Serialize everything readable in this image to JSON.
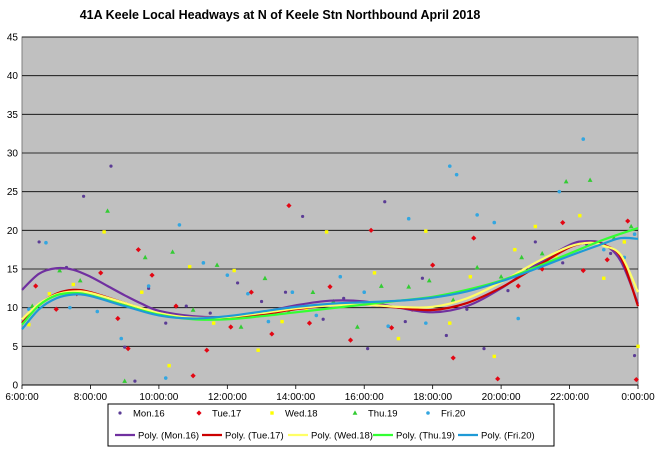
{
  "chart_data": {
    "type": "scatter",
    "title": "41A Keele Local Headways at N of Keele Stn Northbound April 2018",
    "xlabel": "",
    "ylabel": "",
    "xlim": [
      6,
      24
    ],
    "ylim": [
      0,
      45
    ],
    "x_ticks": [
      "6:00:00",
      "8:00:00",
      "10:00:00",
      "12:00:00",
      "14:00:00",
      "16:00:00",
      "18:00:00",
      "20:00:00",
      "22:00:00",
      "0:00:00"
    ],
    "y_ticks": [
      "0",
      "5",
      "10",
      "15",
      "20",
      "25",
      "30",
      "35",
      "40",
      "45"
    ],
    "grid": true,
    "legend_position": "bottom",
    "series": [
      {
        "name": "Mon.16",
        "color": "#5b3c95",
        "marker": "diamond-dot",
        "points": [
          [
            6.5,
            18.5
          ],
          [
            7.3,
            15.2
          ],
          [
            7.8,
            24.4
          ],
          [
            8.6,
            28.3
          ],
          [
            9.0,
            4.9
          ],
          [
            9.3,
            0.5
          ],
          [
            9.7,
            12.5
          ],
          [
            10.2,
            8.0
          ],
          [
            10.8,
            10.2
          ],
          [
            11.5,
            9.3
          ],
          [
            12.3,
            13.2
          ],
          [
            13.0,
            10.8
          ],
          [
            13.7,
            12.0
          ],
          [
            14.2,
            21.8
          ],
          [
            14.8,
            8.5
          ],
          [
            15.4,
            11.2
          ],
          [
            16.1,
            4.7
          ],
          [
            16.6,
            23.7
          ],
          [
            17.2,
            8.2
          ],
          [
            17.7,
            13.8
          ],
          [
            18.4,
            6.4
          ],
          [
            19.0,
            9.8
          ],
          [
            19.5,
            4.7
          ],
          [
            20.2,
            12.2
          ],
          [
            21.0,
            18.5
          ],
          [
            21.8,
            15.8
          ],
          [
            22.5,
            18.2
          ],
          [
            23.2,
            17.0
          ],
          [
            23.9,
            3.8
          ]
        ]
      },
      {
        "name": "Tue.17",
        "color": "#e30613",
        "marker": "diamond",
        "points": [
          [
            6.4,
            12.8
          ],
          [
            7.0,
            9.8
          ],
          [
            7.6,
            11.8
          ],
          [
            8.3,
            14.5
          ],
          [
            8.8,
            8.6
          ],
          [
            9.1,
            4.7
          ],
          [
            9.4,
            17.5
          ],
          [
            9.8,
            14.2
          ],
          [
            10.5,
            10.2
          ],
          [
            11.0,
            1.2
          ],
          [
            11.4,
            4.5
          ],
          [
            12.1,
            7.5
          ],
          [
            12.7,
            12.0
          ],
          [
            13.3,
            6.6
          ],
          [
            13.8,
            23.2
          ],
          [
            14.4,
            8.0
          ],
          [
            15.0,
            12.7
          ],
          [
            15.6,
            5.8
          ],
          [
            16.2,
            20.0
          ],
          [
            16.8,
            7.4
          ],
          [
            17.4,
            9.8
          ],
          [
            18.0,
            15.5
          ],
          [
            18.6,
            3.5
          ],
          [
            19.2,
            19.0
          ],
          [
            19.9,
            0.8
          ],
          [
            20.5,
            12.8
          ],
          [
            21.2,
            15.0
          ],
          [
            21.8,
            21.0
          ],
          [
            22.4,
            14.8
          ],
          [
            23.1,
            16.2
          ],
          [
            23.7,
            21.2
          ],
          [
            23.95,
            0.7
          ]
        ]
      },
      {
        "name": "Wed.18",
        "color": "#ffff00",
        "marker": "square",
        "points": [
          [
            6.2,
            7.8
          ],
          [
            6.8,
            11.8
          ],
          [
            7.5,
            13.0
          ],
          [
            8.4,
            19.8
          ],
          [
            9.0,
            10.5
          ],
          [
            9.5,
            12.0
          ],
          [
            10.3,
            2.5
          ],
          [
            10.9,
            15.3
          ],
          [
            11.6,
            8.0
          ],
          [
            12.2,
            14.8
          ],
          [
            12.9,
            4.5
          ],
          [
            13.6,
            8.2
          ],
          [
            14.3,
            9.8
          ],
          [
            14.9,
            19.8
          ],
          [
            15.7,
            10.5
          ],
          [
            16.3,
            14.5
          ],
          [
            17.0,
            6.0
          ],
          [
            17.8,
            19.9
          ],
          [
            18.5,
            8.0
          ],
          [
            19.1,
            14.0
          ],
          [
            19.8,
            3.7
          ],
          [
            20.4,
            17.5
          ],
          [
            21.0,
            20.5
          ],
          [
            21.6,
            16.7
          ],
          [
            22.3,
            21.9
          ],
          [
            23.0,
            13.8
          ],
          [
            23.6,
            18.5
          ],
          [
            24.0,
            5.0
          ]
        ]
      },
      {
        "name": "Thu.19",
        "color": "#33cc33",
        "marker": "triangle",
        "points": [
          [
            6.3,
            10.2
          ],
          [
            7.1,
            14.8
          ],
          [
            7.7,
            13.5
          ],
          [
            8.5,
            22.5
          ],
          [
            9.0,
            0.5
          ],
          [
            9.6,
            16.5
          ],
          [
            10.4,
            17.2
          ],
          [
            11.0,
            9.7
          ],
          [
            11.7,
            15.5
          ],
          [
            12.4,
            7.5
          ],
          [
            13.1,
            13.8
          ],
          [
            13.8,
            9.5
          ],
          [
            14.5,
            12.0
          ],
          [
            15.1,
            10.8
          ],
          [
            15.8,
            7.5
          ],
          [
            16.5,
            12.8
          ],
          [
            17.3,
            12.7
          ],
          [
            17.9,
            13.5
          ],
          [
            18.6,
            11.0
          ],
          [
            19.3,
            15.2
          ],
          [
            20.0,
            14.0
          ],
          [
            20.6,
            16.5
          ],
          [
            21.2,
            17.0
          ],
          [
            21.9,
            26.3
          ],
          [
            22.6,
            26.5
          ],
          [
            23.3,
            19.0
          ],
          [
            23.8,
            20.5
          ]
        ]
      },
      {
        "name": "Fri.20",
        "color": "#33a6e0",
        "marker": "dot",
        "points": [
          [
            6.2,
            9.8
          ],
          [
            6.7,
            18.4
          ],
          [
            7.4,
            10.0
          ],
          [
            8.2,
            9.5
          ],
          [
            8.9,
            6.0
          ],
          [
            9.7,
            12.8
          ],
          [
            10.2,
            0.9
          ],
          [
            10.6,
            20.7
          ],
          [
            11.3,
            15.8
          ],
          [
            12.0,
            14.2
          ],
          [
            12.6,
            11.8
          ],
          [
            13.2,
            8.2
          ],
          [
            13.9,
            12.0
          ],
          [
            14.6,
            9.0
          ],
          [
            15.3,
            14.0
          ],
          [
            16.0,
            12.0
          ],
          [
            16.7,
            7.6
          ],
          [
            17.3,
            21.5
          ],
          [
            17.8,
            8.0
          ],
          [
            18.5,
            28.3
          ],
          [
            18.7,
            27.2
          ],
          [
            19.3,
            22.0
          ],
          [
            19.8,
            21.0
          ],
          [
            20.5,
            8.6
          ],
          [
            21.1,
            15.5
          ],
          [
            21.7,
            25.0
          ],
          [
            22.4,
            31.8
          ],
          [
            23.0,
            17.5
          ],
          [
            23.6,
            16.5
          ],
          [
            23.9,
            19.5
          ]
        ]
      }
    ],
    "trendlines": [
      {
        "name": "Poly. (Mon.16)",
        "color": "#7030a0",
        "points": [
          [
            6,
            12.3
          ],
          [
            6.5,
            14.4
          ],
          [
            7,
            15.1
          ],
          [
            7.5,
            14.9
          ],
          [
            8,
            14.0
          ],
          [
            8.5,
            12.8
          ],
          [
            9,
            11.6
          ],
          [
            9.5,
            10.5
          ],
          [
            10,
            9.6
          ],
          [
            11,
            8.9
          ],
          [
            12,
            8.8
          ],
          [
            13,
            9.4
          ],
          [
            14,
            10.3
          ],
          [
            15,
            10.9
          ],
          [
            16,
            10.8
          ],
          [
            17,
            10.0
          ],
          [
            18,
            9.4
          ],
          [
            19,
            10.2
          ],
          [
            20,
            12.5
          ],
          [
            21,
            15.5
          ],
          [
            22,
            18.1
          ],
          [
            22.5,
            18.6
          ],
          [
            23,
            18.2
          ],
          [
            23.5,
            16.0
          ],
          [
            24,
            10.5
          ]
        ]
      },
      {
        "name": "Poly. (Tue.17)",
        "color": "#cc0000",
        "points": [
          [
            6,
            8.0
          ],
          [
            6.5,
            10.4
          ],
          [
            7,
            11.8
          ],
          [
            7.5,
            12.3
          ],
          [
            8,
            12.0
          ],
          [
            9,
            10.6
          ],
          [
            10,
            9.2
          ],
          [
            11,
            8.6
          ],
          [
            12,
            8.6
          ],
          [
            13,
            9.1
          ],
          [
            14,
            9.8
          ],
          [
            15,
            10.3
          ],
          [
            16,
            10.4
          ],
          [
            17,
            10.0
          ],
          [
            18,
            9.7
          ],
          [
            19,
            10.6
          ],
          [
            20,
            12.6
          ],
          [
            21,
            15.2
          ],
          [
            22,
            17.8
          ],
          [
            22.6,
            18.4
          ],
          [
            23,
            18.1
          ],
          [
            23.5,
            16.5
          ],
          [
            24,
            10.2
          ]
        ]
      },
      {
        "name": "Poly. (Wed.18)",
        "color": "#ffff66",
        "points": [
          [
            6,
            8.5
          ],
          [
            6.5,
            10.5
          ],
          [
            7,
            11.7
          ],
          [
            7.5,
            12.1
          ],
          [
            8,
            11.9
          ],
          [
            9,
            10.6
          ],
          [
            10,
            9.3
          ],
          [
            11,
            8.7
          ],
          [
            12,
            8.8
          ],
          [
            13,
            9.3
          ],
          [
            14,
            9.9
          ],
          [
            15,
            10.3
          ],
          [
            16,
            10.4
          ],
          [
            17,
            10.1
          ],
          [
            18,
            10.1
          ],
          [
            19,
            11.2
          ],
          [
            20,
            13.3
          ],
          [
            21,
            15.8
          ],
          [
            22,
            17.9
          ],
          [
            22.6,
            18.4
          ],
          [
            23,
            18.0
          ],
          [
            23.5,
            16.8
          ],
          [
            24,
            12.0
          ]
        ]
      },
      {
        "name": "Poly. (Thu.19)",
        "color": "#33ff33",
        "points": [
          [
            6,
            7.8
          ],
          [
            6.5,
            10.3
          ],
          [
            7,
            11.6
          ],
          [
            7.5,
            11.9
          ],
          [
            8,
            11.6
          ],
          [
            9,
            10.3
          ],
          [
            10,
            9.1
          ],
          [
            11,
            8.5
          ],
          [
            12,
            8.5
          ],
          [
            13,
            8.9
          ],
          [
            14,
            9.4
          ],
          [
            15,
            9.9
          ],
          [
            16,
            10.4
          ],
          [
            17,
            10.9
          ],
          [
            18,
            11.4
          ],
          [
            19,
            12.3
          ],
          [
            20,
            13.5
          ],
          [
            21,
            15.2
          ],
          [
            22,
            17.0
          ],
          [
            23,
            18.8
          ],
          [
            24,
            20.3
          ]
        ]
      },
      {
        "name": "Poly. (Fri.20)",
        "color": "#1f9ad6",
        "points": [
          [
            6,
            7.2
          ],
          [
            6.5,
            9.8
          ],
          [
            7,
            11.2
          ],
          [
            7.5,
            11.7
          ],
          [
            8,
            11.5
          ],
          [
            9,
            10.2
          ],
          [
            10,
            9.0
          ],
          [
            11,
            8.6
          ],
          [
            12,
            8.9
          ],
          [
            13,
            9.5
          ],
          [
            14,
            10.1
          ],
          [
            15,
            10.5
          ],
          [
            16,
            10.7
          ],
          [
            17,
            10.9
          ],
          [
            18,
            11.3
          ],
          [
            19,
            12.1
          ],
          [
            20,
            13.4
          ],
          [
            21,
            15.0
          ],
          [
            22,
            16.7
          ],
          [
            23,
            18.3
          ],
          [
            23.5,
            19.0
          ],
          [
            24,
            18.9
          ]
        ]
      }
    ]
  }
}
